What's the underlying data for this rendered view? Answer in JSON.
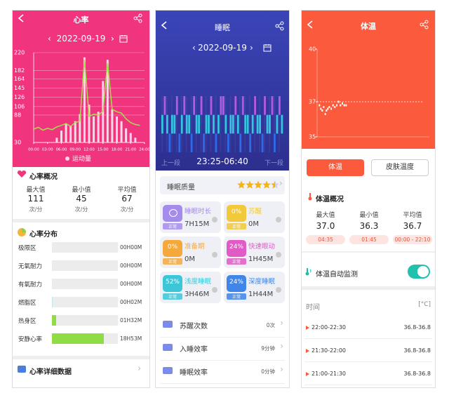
{
  "chart_data": [
    {
      "type": "line",
      "ylim": [
        30,
        220
      ],
      "yticks": [
        220,
        182,
        164,
        145,
        126,
        106,
        88,
        30
      ],
      "xlim": [
        0,
        24
      ],
      "xticks": [
        {
          "value": 0,
          "label": "00:00"
        },
        {
          "value": 3,
          "label": "03:00"
        },
        {
          "value": 6,
          "label": "06:00"
        },
        {
          "value": 9,
          "label": "09:00"
        },
        {
          "value": 12,
          "label": "12:00"
        },
        {
          "value": 15,
          "label": "15:00"
        },
        {
          "value": 18,
          "label": "18:00"
        },
        {
          "value": 21,
          "label": "21:00"
        },
        {
          "value": 24,
          "label": "24:00"
        }
      ],
      "x": [
        0,
        1,
        2,
        3,
        4,
        5,
        6,
        7,
        8,
        9,
        10,
        11,
        12,
        13,
        14,
        15,
        16,
        17,
        18,
        19,
        20,
        21,
        22,
        23,
        24
      ],
      "series": [
        {
          "name": "运动量",
          "type": "bar",
          "color": "#ffd6e8",
          "values": [
            null,
            null,
            null,
            null,
            null,
            40,
            55,
            70,
            65,
            75,
            90,
            210,
            110,
            85,
            95,
            160,
            205,
            100,
            85,
            75,
            60,
            50,
            40,
            null,
            null
          ]
        },
        {
          "type": "line",
          "color": "#a3e24e",
          "values": [
            58,
            62,
            56,
            60,
            57,
            63,
            66,
            70,
            64,
            72,
            75,
            205,
            85,
            90,
            88,
            96,
            198,
            100,
            95,
            92,
            80,
            72,
            68,
            66,
            null
          ]
        }
      ],
      "grid": true
    },
    {
      "type": "bar",
      "ylim": [
        0,
        3
      ],
      "colors": [
        "#2f6ff0",
        "#33d6e8",
        "#c35ee6"
      ],
      "values": [
        2,
        3,
        2,
        1,
        2,
        2,
        3,
        1,
        2,
        3,
        2,
        2,
        1,
        3,
        2,
        2,
        3,
        1,
        2,
        2,
        3,
        2,
        1,
        2,
        3,
        3,
        2,
        1,
        2,
        2,
        3,
        2,
        1,
        3,
        2,
        2,
        1,
        2,
        3,
        2,
        2,
        1,
        3,
        2,
        2,
        3,
        1,
        2,
        3,
        2
      ]
    },
    {
      "type": "scatter",
      "ylim": [
        35,
        40
      ],
      "yticks": [
        35,
        37,
        40
      ],
      "xlim": [
        0,
        24
      ],
      "color": "#ffffff",
      "ref_line": 37,
      "x": [
        0.5,
        0.8,
        1.1,
        1.4,
        1.75,
        2.0,
        2.3,
        2.6,
        3.0,
        3.4,
        3.8,
        4.2,
        4.58,
        5.0,
        5.4,
        5.8,
        6.2
      ],
      "values": [
        36.8,
        36.6,
        36.5,
        36.7,
        36.3,
        36.5,
        36.6,
        36.7,
        36.6,
        36.8,
        36.7,
        36.8,
        37.0,
        36.8,
        36.9,
        36.8,
        36.8
      ]
    }
  ],
  "heart": {
    "title": "心率",
    "date": "2022-09-19",
    "summary": {
      "title": "心率概况",
      "stats": [
        {
          "label": "最大值",
          "value": "111",
          "unit": "次/分"
        },
        {
          "label": "最小值",
          "value": "45",
          "unit": "次/分"
        },
        {
          "label": "平均值",
          "value": "67",
          "unit": "次/分"
        }
      ]
    },
    "distribution": {
      "title": "心率分布",
      "rows": [
        {
          "label": "极限区",
          "time": "00H00M"
        },
        {
          "label": "无氧耐力",
          "time": "00H00M"
        },
        {
          "label": "有氧耐力",
          "time": "00H00M"
        },
        {
          "label": "燃脂区",
          "time": "00H02M"
        },
        {
          "label": "热身区",
          "time": "01H32M"
        },
        {
          "label": "安静心率",
          "time": "18H53M"
        }
      ]
    },
    "detail": "心率详细数据"
  },
  "sleep": {
    "title": "睡眠",
    "date": "2022-09-19",
    "prev": "上一段",
    "range": "23:25-06:40",
    "next": "下一段",
    "quality": {
      "label": "睡眠质量",
      "rating": 4.5,
      "rating_max": 5
    },
    "cells": [
      {
        "label": "睡眠时长",
        "value": "7H15M",
        "status": "正常",
        "color": "#a58cec"
      },
      {
        "percent": "0%",
        "label": "苏醒",
        "value": "0M",
        "status": "正常",
        "color": "#f2c93a"
      },
      {
        "percent": "0%",
        "label": "准备期",
        "value": "0M",
        "status": "正常",
        "color": "#f5a93c"
      },
      {
        "percent": "24%",
        "label": "快速眼动",
        "value": "1H45M",
        "status": "正常",
        "color": "#e05cc4"
      },
      {
        "percent": "52%",
        "label": "浅度睡眠",
        "value": "3H46M",
        "status": "正常",
        "color": "#3cc6d8"
      },
      {
        "percent": "24%",
        "label": "深度睡眠",
        "value": "1H44M",
        "status": "正常",
        "color": "#3f86e8"
      }
    ],
    "rows": [
      {
        "label": "苏醒次数",
        "value": "0次"
      },
      {
        "label": "入睡效率",
        "value": "9分钟"
      },
      {
        "label": "睡眠效率",
        "value": "0分钟"
      }
    ]
  },
  "temp": {
    "title": "体温",
    "tabs": [
      "体温",
      "皮肤温度"
    ],
    "summary": {
      "title": "体温概况",
      "stats": [
        {
          "label": "最大值",
          "value": "37.0",
          "time": "04:35"
        },
        {
          "label": "最小值",
          "value": "36.3",
          "time": "01:45"
        },
        {
          "label": "平均值",
          "value": "36.7",
          "time": "00:00 - 22:10"
        }
      ]
    },
    "monitor": {
      "label": "体温自动监测",
      "on": true
    },
    "table": {
      "header": [
        "时间",
        "[°C]"
      ],
      "rows": [
        [
          "22:00-22:30",
          "36.8-36.8"
        ],
        [
          "21:30-22:00",
          "36.8-36.8"
        ],
        [
          "21:00-21:30",
          "36.8-36.8"
        ]
      ]
    }
  }
}
